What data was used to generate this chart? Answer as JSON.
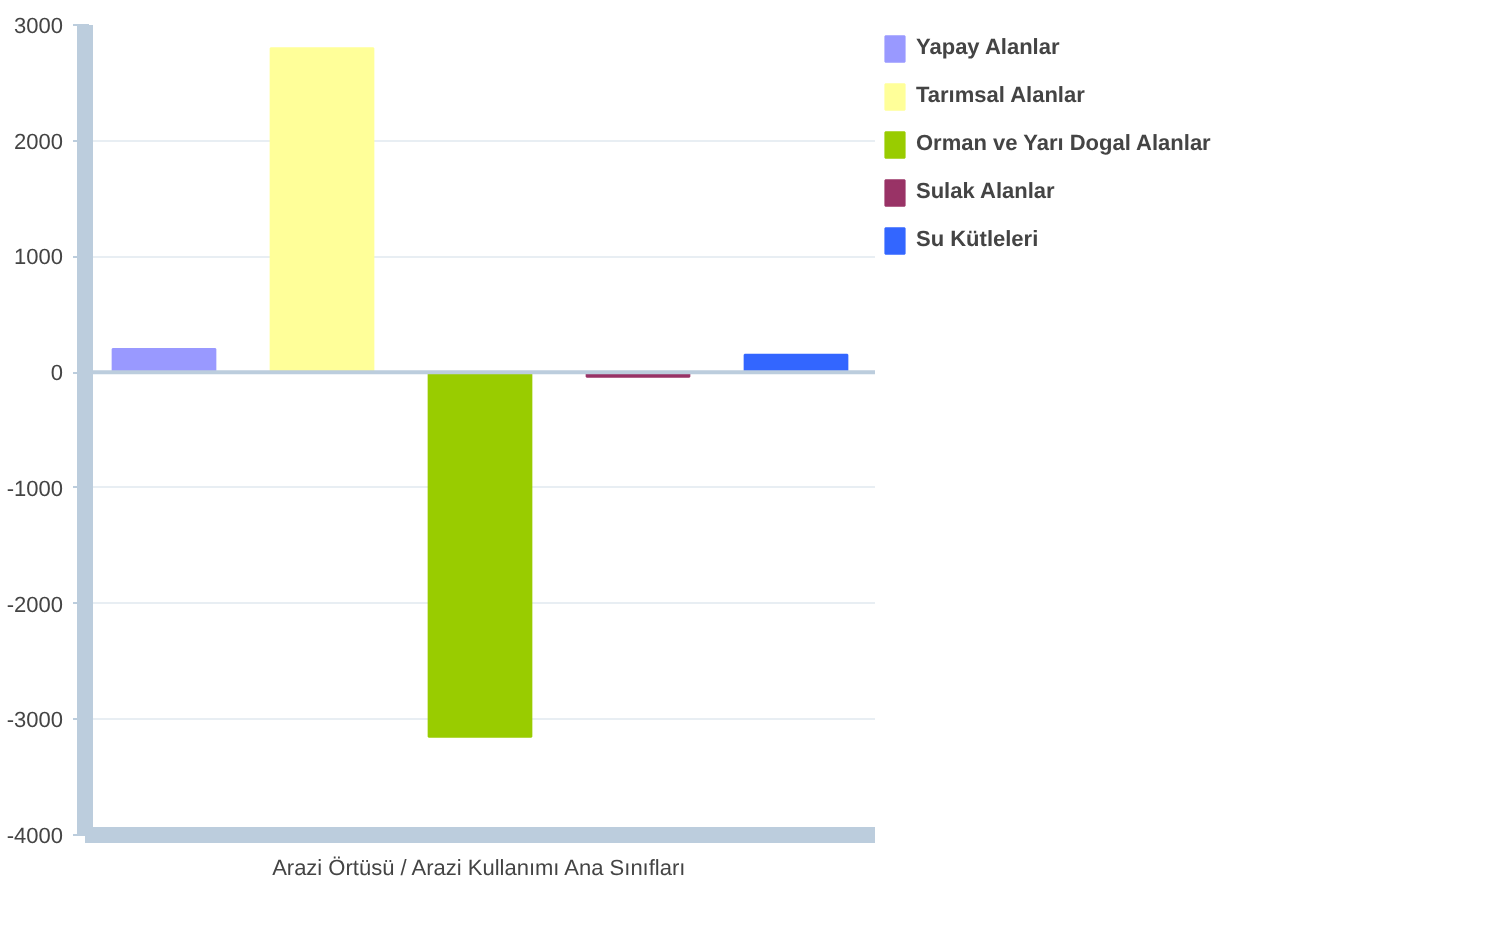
{
  "chart_data": {
    "type": "bar",
    "xlabel": "Arazi Örtüsü / Arazi Kullanımı Ana Sınıfları",
    "categories": [
      null,
      null,
      null,
      null,
      null
    ],
    "series": [
      {
        "name": "Yapay Alanlar",
        "color": "#9999ff",
        "values": [
          200,
          null,
          null,
          null,
          null
        ]
      },
      {
        "name": "Tarımsal Alanlar",
        "color": "#ffff99",
        "values": [
          null,
          2800,
          null,
          null,
          null
        ]
      },
      {
        "name": "Orman ve Yarı Dogal Alanlar",
        "color": "#99cc00",
        "values": [
          null,
          null,
          -3150,
          null,
          null
        ]
      },
      {
        "name": "Sulak Alanlar",
        "color": "#993366",
        "values": [
          null,
          null,
          null,
          -40,
          null
        ]
      },
      {
        "name": "Su Kütleleri",
        "color": "#3366ff",
        "values": [
          null,
          null,
          null,
          null,
          150
        ]
      }
    ],
    "ylim": [
      -4000,
      3000
    ],
    "yticks": [
      -4000,
      -3000,
      -2000,
      -1000,
      0,
      1000,
      2000,
      3000
    ],
    "grid": "y",
    "legend": "right"
  }
}
